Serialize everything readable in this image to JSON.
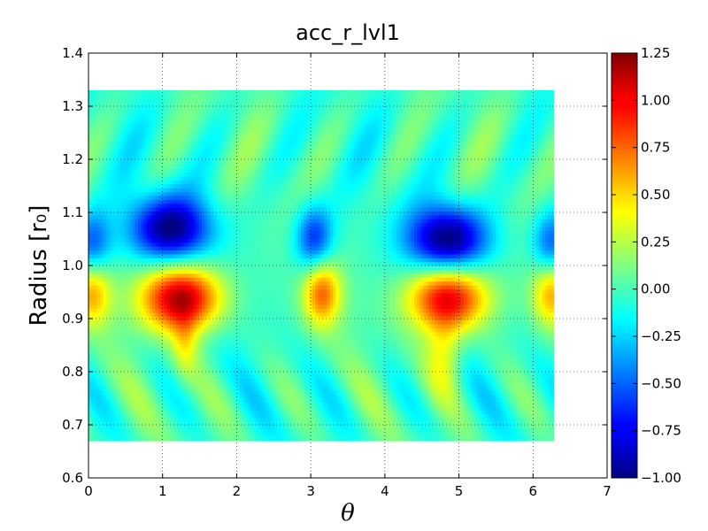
{
  "chart_data": {
    "type": "heatmap",
    "title": "acc_r_lvl1",
    "xlabel": "θ",
    "ylabel": "Radius  [r₀]",
    "xlim": [
      0,
      7
    ],
    "ylim": [
      0.6,
      1.4
    ],
    "x_ticks": [
      "0",
      "1",
      "2",
      "3",
      "4",
      "5",
      "6",
      "7"
    ],
    "y_ticks": [
      "0.6",
      "0.7",
      "0.8",
      "0.9",
      "1.0",
      "1.1",
      "1.2",
      "1.3",
      "1.4"
    ],
    "data_extent": {
      "theta": [
        0,
        6.28
      ],
      "radius": [
        0.67,
        1.33
      ]
    },
    "colormap": "jet",
    "colorbar": {
      "vmin": -1.0,
      "vmax": 1.25,
      "ticks": [
        "−1.00",
        "−0.75",
        "−0.50",
        "−0.25",
        "0.00",
        "0.25",
        "0.50",
        "0.75",
        "1.00",
        "1.25"
      ]
    },
    "grid": true,
    "features": [
      {
        "theta": 1.1,
        "radius": 1.07,
        "value": -0.95
      },
      {
        "theta": 4.85,
        "radius": 1.05,
        "value": -1.0
      },
      {
        "theta": 3.05,
        "radius": 1.05,
        "value": -0.65
      },
      {
        "theta": 0.05,
        "radius": 1.04,
        "value": -0.55
      },
      {
        "theta": 6.25,
        "radius": 1.04,
        "value": -0.55
      },
      {
        "theta": 1.25,
        "radius": 0.94,
        "value": 1.2
      },
      {
        "theta": 4.85,
        "radius": 0.94,
        "value": 1.1
      },
      {
        "theta": 3.15,
        "radius": 0.95,
        "value": 0.75
      },
      {
        "theta": 0.05,
        "radius": 0.95,
        "value": 0.6
      },
      {
        "theta": 6.25,
        "radius": 0.95,
        "value": 0.6
      }
    ]
  }
}
